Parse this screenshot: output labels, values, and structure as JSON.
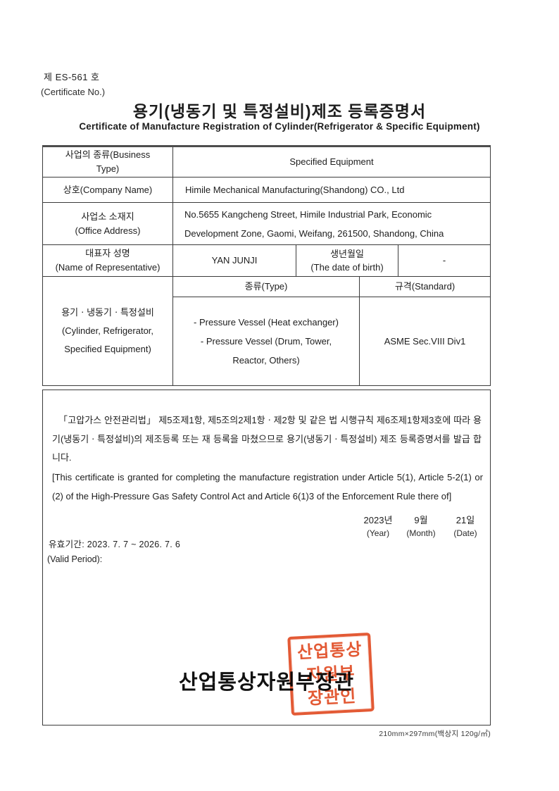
{
  "header": {
    "cert_no": "제 ES-561 호",
    "cert_no_label": "(Certificate No.)",
    "title_ko": "용기(냉동기 및 특정설비)제조 등록증명서",
    "title_en": "Certificate of Manufacture Registration of Cylinder(Refrigerator & Specific Equipment)"
  },
  "table": {
    "business_type": {
      "label": "사업의 종류(Business\nType)",
      "value": "Specified Equipment"
    },
    "company": {
      "label": "상호(Company Name)",
      "value": "Himile Mechanical Manufacturing(Shandong) CO., Ltd"
    },
    "address": {
      "label": "사업소 소재지\n(Office Address)",
      "value": "No.5655 Kangcheng Street, Himile Industrial Park, Economic Development Zone, Gaomi, Weifang, 261500, Shandong, China"
    },
    "representative": {
      "label": "대표자 성명\n(Name of Representative)",
      "name": "YAN JUNJI",
      "birth_label": "생년월일\n(The date of birth)",
      "birth_value": "-"
    },
    "equipment": {
      "label": "용기ㆍ냉동기ㆍ특정설비\n(Cylinder, Refrigerator,\nSpecified Equipment)",
      "type_header": "종류(Type)",
      "standard_header": "규격(Standard)",
      "type_value": "- Pressure Vessel (Heat exchanger)\n- Pressure Vessel (Drum, Tower,\nReactor, Others)",
      "standard_value": "ASME Sec.VIII Div1"
    }
  },
  "body": {
    "paragraph_ko": "「고압가스 안전관리법」  제5조제1항, 제5조의2제1항ㆍ제2항 및 같은 법 시행규칙 제6조제1항제3호에 따라 용기(냉동기ㆍ특정설비)의 제조등록 또는 재 등록을 마쳤으므로 용기(냉동기ㆍ특정설비) 제조 등록증명서를 발급 합니다.",
    "paragraph_en": "[This certificate is granted for completing the manufacture registration under Article 5(1), Article 5-2(1) or (2) of the High-Pressure Gas Safety Control Act and Article 6(1)3 of the Enforcement Rule there of]",
    "issue_date": {
      "year": "2023년",
      "year_label": "(Year)",
      "month": "9월",
      "month_label": "(Month)",
      "day": "21일",
      "day_label": "(Date)"
    },
    "valid_period": "유효기간: 2023. 7. 7 ~ 2026. 7. 6",
    "valid_period_label": "(Valid Period):",
    "minister": "산업통상자원부장관",
    "seal_text": "산업통상\n자원부\n장관인",
    "seal_color": "#e2512a"
  },
  "footer": {
    "paper_spec": "210mm×297mm(백상지 120g/㎡)"
  }
}
